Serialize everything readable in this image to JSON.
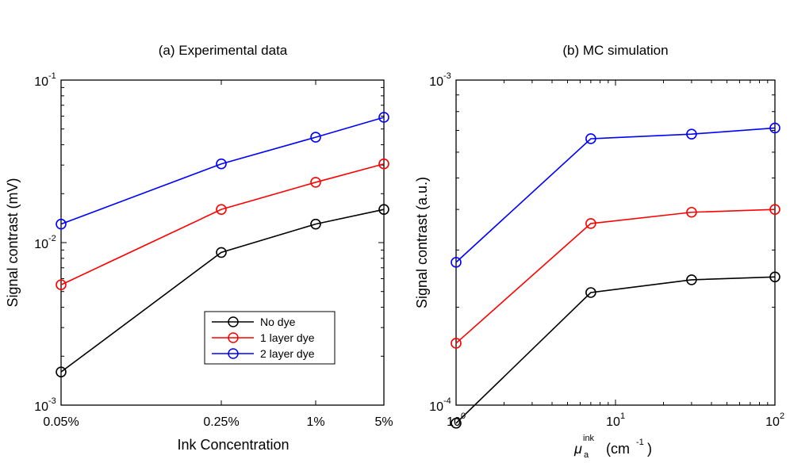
{
  "chart_data": [
    {
      "type": "line",
      "title": "(a) Experimental data",
      "xlabel": "Ink Concentration",
      "ylabel": "Signal contrast (mV)",
      "yscale": "log",
      "ylim": [
        0.001,
        0.1
      ],
      "categories": [
        "0.05%",
        "0.25%",
        "1%",
        "5%"
      ],
      "yticks": [
        {
          "value": 0.1,
          "base": "10",
          "exp": "-1"
        },
        {
          "value": 0.01,
          "base": "10",
          "exp": "-2"
        },
        {
          "value": 0.001,
          "base": "10",
          "exp": "-3"
        }
      ],
      "legend_position": "lower-right",
      "series": [
        {
          "name": "No dye",
          "color": "#000000",
          "values": [
            0.0016,
            0.0087,
            0.013,
            0.016
          ]
        },
        {
          "name": "1 layer dye",
          "color": "#ff0000",
          "values": [
            0.0055,
            0.016,
            0.0235,
            0.0305
          ]
        },
        {
          "name": "2 layer dye",
          "color": "#0000ff",
          "values": [
            0.013,
            0.0305,
            0.0445,
            0.059
          ]
        }
      ]
    },
    {
      "type": "line",
      "title": "(b) MC simulation",
      "xlabel_symbol": "μ",
      "xlabel_sub": "a",
      "xlabel_sup": "ink",
      "xlabel_unit_prefix": "(cm",
      "xlabel_unit_exp": "-1",
      "xlabel_unit_suffix": ")",
      "ylabel": "Signal contrast (a.u.)",
      "xscale": "log",
      "yscale": "log",
      "xlim": [
        1,
        100
      ],
      "ylim": [
        0.0001,
        0.001
      ],
      "xticks": [
        {
          "value": 1,
          "base": "10",
          "exp": "0"
        },
        {
          "value": 10,
          "base": "10",
          "exp": "1"
        },
        {
          "value": 100,
          "base": "10",
          "exp": "2"
        }
      ],
      "yticks": [
        {
          "value": 0.001,
          "base": "10",
          "exp": "-3"
        },
        {
          "value": 0.0001,
          "base": "10",
          "exp": "-4"
        }
      ],
      "x": [
        1,
        7,
        30,
        100
      ],
      "series": [
        {
          "name": "No dye",
          "color": "#000000",
          "values": [
            8.8e-05,
            0.000222,
            0.000243,
            0.000248
          ]
        },
        {
          "name": "1 layer dye",
          "color": "#ff0000",
          "values": [
            0.000155,
            0.000362,
            0.000392,
            0.0004
          ]
        },
        {
          "name": "2 layer dye",
          "color": "#0000ff",
          "values": [
            0.000275,
            0.00066,
            0.000682,
            0.000712
          ]
        }
      ]
    }
  ]
}
